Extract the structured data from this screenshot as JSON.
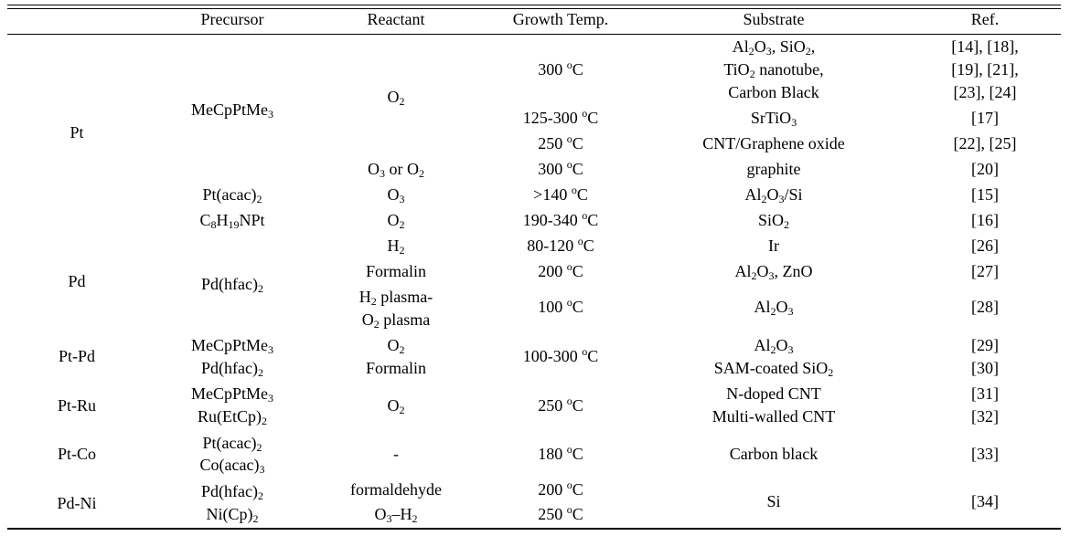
{
  "table": {
    "headers": [
      "Precursor",
      "Reactant",
      "Growth Temp.",
      "Substrate",
      "Ref."
    ],
    "metals": [
      "Pt",
      "Pd",
      "Pt-Pd",
      "Pt-Ru",
      "Pt-Co",
      "Pd-Ni"
    ],
    "precursors": [
      "MeCpPtMe3",
      "Pt(acac)2",
      "C8H19NPt",
      "Pd(hfac)2",
      "MeCpPtMe3",
      "Pd(hfac)2",
      "MeCpPtMe3",
      "Ru(EtCp)2",
      "Pt(acac)2",
      "Co(acac)3",
      "Pd(hfac)2",
      "Ni(Cp)2"
    ],
    "reactants": [
      "O2",
      "O3 or O2",
      "O3",
      "O2",
      "H2",
      "Formalin",
      "H2 plasma-",
      "O2 plasma",
      "O2",
      "Formalin",
      "O2",
      "-",
      "formaldehyde",
      "O3–H2"
    ],
    "temperatures": [
      "300 oC",
      "125-300 oC",
      "250 oC",
      "300 oC",
      ">140 oC",
      "190-340 oC",
      "80-120 oC",
      "200 oC",
      "100 oC",
      "100-300 oC",
      "250 oC",
      "180 oC",
      "200 oC",
      "250 oC"
    ],
    "substrates": [
      "Al2O3, SiO2,",
      "TiO2 nanotube,",
      "Carbon Black",
      "SrTiO3",
      "CNT/Graphene oxide",
      "graphite",
      "Al2O3/Si",
      "SiO2",
      "Ir",
      "Al2O3, ZnO",
      "Al2O3",
      "Al2O3",
      "SAM-coated SiO2",
      "N-doped CNT",
      "Multi-walled CNT",
      "Carbon black",
      "Si"
    ],
    "refs": [
      "[14], [18],",
      "[19], [21],",
      "[23], [24]",
      "[17]",
      "[22], [25]",
      "[20]",
      "[15]",
      "[16]",
      "[26]",
      "[27]",
      "[28]",
      "[29]",
      "[30]",
      "[31]",
      "[32]",
      "[33]",
      "[34]"
    ]
  }
}
